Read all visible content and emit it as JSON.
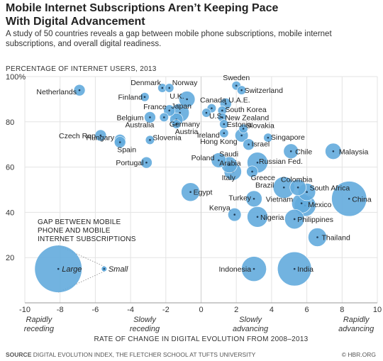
{
  "header": {
    "title_line1": "Mobile Internet Subscriptions Aren’t Keeping Pace",
    "title_line2": "With Digital Advancement",
    "subtitle": "A study of 50 countries reveals a gap between mobile phone subscriptions, mobile internet subscriptions, and overall digital readiness."
  },
  "footer": {
    "source_label": "SOURCE",
    "source_text": " DIGITAL EVOLUTION INDEX, THE FLETCHER SCHOOL AT TUFTS UNIVERSITY",
    "credit": "© HBR.ORG"
  },
  "colors": {
    "bubble": "#4f9fd6",
    "bubble_fill": "#63abdd",
    "grid": "#e3e3e3",
    "text": "#222222"
  },
  "legend": {
    "title_lines": [
      "GAP BETWEEN MOBILE",
      "PHONE AND MOBILE",
      "INTERNET SUBSCRIPTIONS"
    ],
    "large_label": "Large",
    "small_label": "Small"
  },
  "chart_data": {
    "type": "scatter",
    "ylabel": "PERCENTAGE OF INTERNET USERS, 2013",
    "xlabel": "RATE OF CHANGE IN DIGITAL EVOLUTION FROM 2008–2013",
    "xlim": [
      -10,
      10
    ],
    "ylim": [
      0,
      100
    ],
    "xticks": [
      -10,
      -8,
      -6,
      -4,
      -2,
      0,
      2,
      4,
      6,
      8,
      10
    ],
    "yticks": [
      20,
      40,
      60,
      80,
      100
    ],
    "ytick_labels": [
      "20",
      "40",
      "60",
      "80",
      "100%"
    ],
    "x_annotations": [
      {
        "x": -9.2,
        "lines": [
          "Rapidly",
          "receding"
        ]
      },
      {
        "x": -3.2,
        "lines": [
          "Slowly",
          "receding"
        ]
      },
      {
        "x": 2.8,
        "lines": [
          "Slowly",
          "advancing"
        ]
      },
      {
        "x": 8.8,
        "lines": [
          "Rapidly",
          "advancing"
        ]
      }
    ],
    "points": [
      {
        "name": "Netherlands",
        "x": -6.9,
        "y": 94,
        "size": 2
      },
      {
        "name": "Denmark",
        "x": -2.2,
        "y": 95,
        "size": 1
      },
      {
        "name": "Norway",
        "x": -1.8,
        "y": 95,
        "size": 1
      },
      {
        "name": "Sweden",
        "x": 2.0,
        "y": 96,
        "size": 1
      },
      {
        "name": "Switzerland",
        "x": 2.3,
        "y": 94,
        "size": 1
      },
      {
        "name": "Finland",
        "x": -3.2,
        "y": 91,
        "size": 1
      },
      {
        "name": "U.K.",
        "x": -0.8,
        "y": 90,
        "size": 5
      },
      {
        "name": "Canada",
        "x": 0.6,
        "y": 86,
        "size": 1
      },
      {
        "name": "U.A.E.",
        "x": 1.4,
        "y": 88,
        "size": 2
      },
      {
        "name": "France",
        "x": -1.8,
        "y": 85,
        "size": 2
      },
      {
        "name": "Japan",
        "x": -1.2,
        "y": 84,
        "size": 7
      },
      {
        "name": "South Korea",
        "x": 1.2,
        "y": 85,
        "size": 1
      },
      {
        "name": "Belgium",
        "x": -2.9,
        "y": 82,
        "size": 2
      },
      {
        "name": "Germany",
        "x": -1.4,
        "y": 81,
        "size": 3
      },
      {
        "name": "U.S.",
        "x": 0.3,
        "y": 84,
        "size": 1
      },
      {
        "name": "New Zealand",
        "x": 1.2,
        "y": 82,
        "size": 1
      },
      {
        "name": "Australia",
        "x": -2.1,
        "y": 82,
        "size": 1
      },
      {
        "name": "Austria",
        "x": -1.4,
        "y": 79,
        "size": 1
      },
      {
        "name": "Estonia",
        "x": 1.3,
        "y": 79,
        "size": 1
      },
      {
        "name": "Czech Rep.",
        "x": -5.7,
        "y": 74,
        "size": 2
      },
      {
        "name": "Ireland",
        "x": 1.3,
        "y": 75,
        "size": 1
      },
      {
        "name": "Slovakia",
        "x": 2.4,
        "y": 77,
        "size": 1
      },
      {
        "name": "Hungary",
        "x": -4.6,
        "y": 72,
        "size": 2
      },
      {
        "name": "Slovenia",
        "x": -2.9,
        "y": 72,
        "size": 1
      },
      {
        "name": "Hong Kong",
        "x": 2.3,
        "y": 74,
        "size": 3
      },
      {
        "name": "Singapore",
        "x": 3.8,
        "y": 73,
        "size": 1
      },
      {
        "name": "Spain",
        "x": -4.6,
        "y": 71,
        "size": 2
      },
      {
        "name": "Israel",
        "x": 2.7,
        "y": 70,
        "size": 2
      },
      {
        "name": "Chile",
        "x": 5.1,
        "y": 67,
        "size": 4
      },
      {
        "name": "Malaysia",
        "x": 7.5,
        "y": 67,
        "size": 5
      },
      {
        "name": "Portugal",
        "x": -3.1,
        "y": 62,
        "size": 2
      },
      {
        "name": "Poland",
        "x": 1.0,
        "y": 63,
        "size": 4
      },
      {
        "name": "Saudi Arabia",
        "x": 1.6,
        "y": 61,
        "size": 5
      },
      {
        "name": "Russian Fed.",
        "x": 3.2,
        "y": 62,
        "size": 9
      },
      {
        "name": "Italy",
        "x": 1.8,
        "y": 58,
        "size": 6
      },
      {
        "name": "Greece",
        "x": 2.9,
        "y": 58,
        "size": 2
      },
      {
        "name": "Brazil",
        "x": 4.7,
        "y": 51,
        "size": 10
      },
      {
        "name": "Colombia",
        "x": 5.5,
        "y": 51,
        "size": 5
      },
      {
        "name": "South Africa",
        "x": 6.0,
        "y": 49,
        "size": 6
      },
      {
        "name": "Egypt",
        "x": -0.6,
        "y": 49,
        "size": 7
      },
      {
        "name": "China",
        "x": 8.4,
        "y": 46,
        "size": 30
      },
      {
        "name": "Turkey",
        "x": 3.0,
        "y": 46,
        "size": 5
      },
      {
        "name": "Vietnam",
        "x": 5.7,
        "y": 44,
        "size": 8
      },
      {
        "name": "Mexico",
        "x": 5.9,
        "y": 43,
        "size": 10
      },
      {
        "name": "Kenya",
        "x": 1.9,
        "y": 39,
        "size": 3
      },
      {
        "name": "Nigeria",
        "x": 3.2,
        "y": 38,
        "size": 9
      },
      {
        "name": "Philippines",
        "x": 5.3,
        "y": 37,
        "size": 8
      },
      {
        "name": "Thailand",
        "x": 6.6,
        "y": 29,
        "size": 7
      },
      {
        "name": "Indonesia",
        "x": 3.0,
        "y": 15,
        "size": 14
      },
      {
        "name": "India",
        "x": 5.3,
        "y": 15,
        "size": 28
      }
    ]
  }
}
